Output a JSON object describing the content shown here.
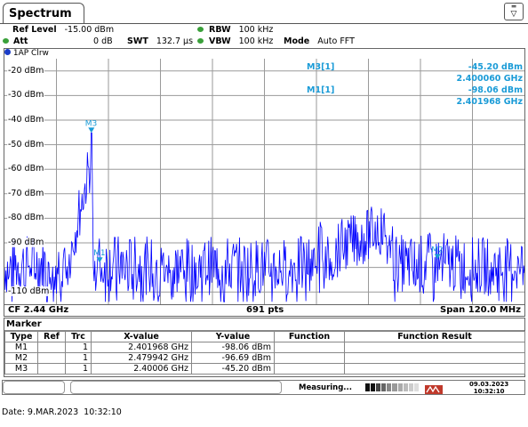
{
  "tab": {
    "title": "Spectrum"
  },
  "header": {
    "ref_level_label": "Ref Level",
    "ref_level_value": "-15.00 dBm",
    "att_label": "Att",
    "att_value": "0 dB",
    "swt_label": "SWT",
    "swt_value": "132.7 µs",
    "rbw_label": "RBW",
    "rbw_value": "100 kHz",
    "vbw_label": "VBW",
    "vbw_value": "100 kHz",
    "mode_label": "Mode",
    "mode_value": "Auto FFT",
    "led_color": "#3aa03a"
  },
  "trace": {
    "label": "1AP Clrw",
    "color": "#0000ff",
    "marker_color": "#1a9bd7"
  },
  "marker_readout": [
    {
      "name": "M3[1]",
      "value": "-45.20 dBm",
      "freq": "2.400060 GHz"
    },
    {
      "name": "M1[1]",
      "value": "-98.06 dBm",
      "freq": "2.401968 GHz"
    }
  ],
  "axis_footer": {
    "left": "CF 2.44 GHz",
    "center": "691 pts",
    "right": "Span 120.0 MHz"
  },
  "chart_data": {
    "type": "line",
    "x_unit": "GHz",
    "y_unit": "dBm",
    "xlim": [
      2.38,
      2.5
    ],
    "ylim": [
      -115,
      -15
    ],
    "yticks": [
      "-20 dBm",
      "-30 dBm",
      "-40 dBm",
      "-50 dBm",
      "-60 dBm",
      "-70 dBm",
      "-80 dBm",
      "-90 dBm",
      "-110 dBm"
    ],
    "grid": true,
    "series": [
      {
        "name": "1AP Clrw",
        "x": [
          2.38,
          2.3862,
          2.3931,
          2.4,
          2.4007,
          2.4019,
          2.41,
          2.42,
          2.43,
          2.44,
          2.45,
          2.455,
          2.458,
          2.461,
          2.464,
          2.466,
          2.468,
          2.47,
          2.475,
          2.4799,
          2.485,
          2.495,
          2.5
        ],
        "y": [
          -100,
          -98,
          -99,
          -45.2,
          -98,
          -98.06,
          -99,
          -100,
          -99,
          -100,
          -99,
          -86,
          -80,
          -78,
          -76,
          -73,
          -75,
          -98,
          -99,
          -96.69,
          -99,
          -100,
          -99
        ]
      }
    ],
    "markers": [
      {
        "label": "M3",
        "x": 2.40006,
        "y": -45.2
      },
      {
        "label": "M1",
        "x": 2.401968,
        "y": -98.06
      },
      {
        "label": "M2",
        "x": 2.479942,
        "y": -96.69
      }
    ]
  },
  "marker_table": {
    "title": "Marker",
    "headers": [
      "Type",
      "Ref",
      "Trc",
      "X-value",
      "Y-value",
      "Function",
      "Function Result"
    ],
    "rows": [
      {
        "type": "M1",
        "ref": "",
        "trc": "1",
        "x": "2.401968 GHz",
        "y": "-98.06 dBm",
        "func": "",
        "result": ""
      },
      {
        "type": "M2",
        "ref": "",
        "trc": "1",
        "x": "2.479942 GHz",
        "y": "-96.69 dBm",
        "func": "",
        "result": ""
      },
      {
        "type": "M3",
        "ref": "",
        "trc": "1",
        "x": "2.40006 GHz",
        "y": "-45.20 dBm",
        "func": "",
        "result": ""
      }
    ]
  },
  "status": {
    "measuring": "Measuring...",
    "date": "09.03.2023",
    "time": "10:32:10"
  },
  "caption": "Date: 9.MAR.2023  10:32:10"
}
